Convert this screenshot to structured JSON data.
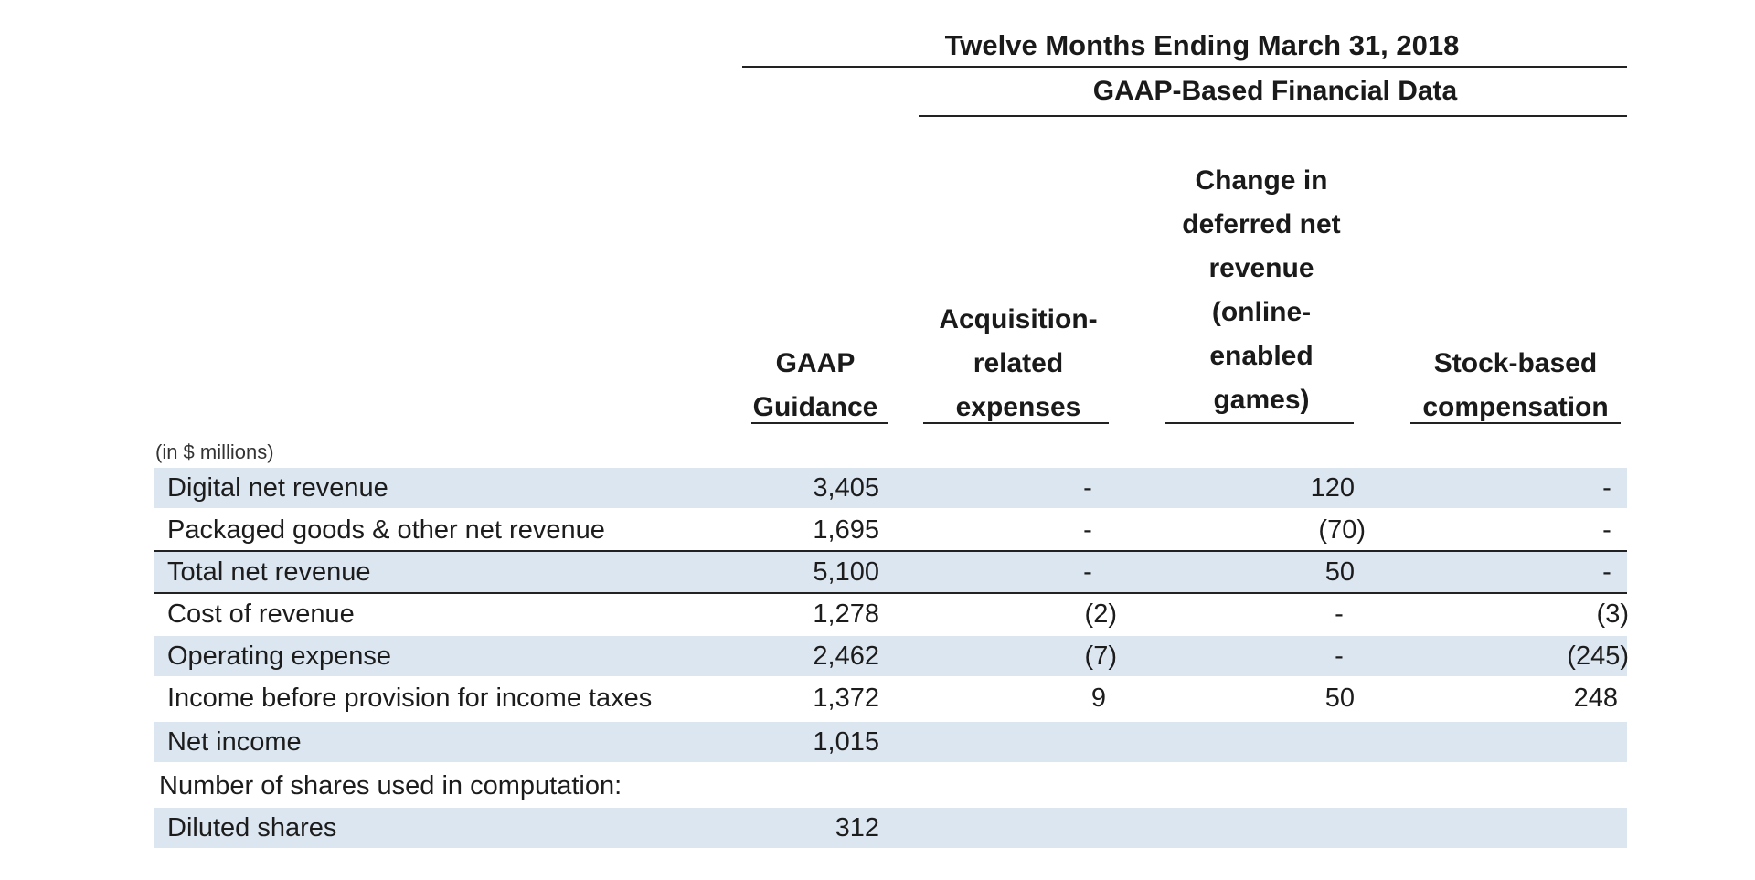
{
  "header": {
    "period": "Twelve Months Ending March 31, 2018",
    "section": "GAAP-Based Financial Data",
    "units": "(in $ millions)",
    "columns": [
      {
        "lines": [
          "GAAP",
          "Guidance"
        ]
      },
      {
        "lines": [
          "Acquisition-",
          "related",
          "expenses"
        ]
      },
      {
        "lines": [
          "Change in",
          "deferred net",
          "revenue",
          "(online-",
          "enabled",
          "games)"
        ]
      },
      {
        "lines": [
          "Stock-based",
          "compensation"
        ]
      }
    ]
  },
  "rows": [
    {
      "label": "Digital net revenue",
      "values": [
        "3,405",
        "-",
        "120",
        "-"
      ],
      "shaded": true
    },
    {
      "label": "Packaged goods & other net revenue",
      "values": [
        "1,695",
        "-",
        "(70)",
        "-"
      ],
      "shaded": false
    },
    {
      "label": "Total net revenue",
      "values": [
        "5,100",
        "-",
        "50",
        "-"
      ],
      "shaded": true
    },
    {
      "label": "Cost of revenue",
      "values": [
        "1,278",
        "(2)",
        "-",
        "(3)"
      ],
      "shaded": false
    },
    {
      "label": "Operating expense",
      "values": [
        "2,462",
        "(7)",
        "-",
        "(245)"
      ],
      "shaded": true
    },
    {
      "label": "Income before provision for income taxes",
      "values": [
        "1,372",
        "9",
        "50",
        "248"
      ],
      "shaded": false
    },
    {
      "label": "Net income",
      "values": [
        "1,015",
        "",
        "",
        ""
      ],
      "shaded": true
    },
    {
      "label": "Number of shares used in computation:",
      "values": [
        "",
        "",
        "",
        ""
      ],
      "shaded": false
    },
    {
      "label": "Diluted shares",
      "values": [
        "312",
        "",
        "",
        ""
      ],
      "shaded": true
    }
  ]
}
